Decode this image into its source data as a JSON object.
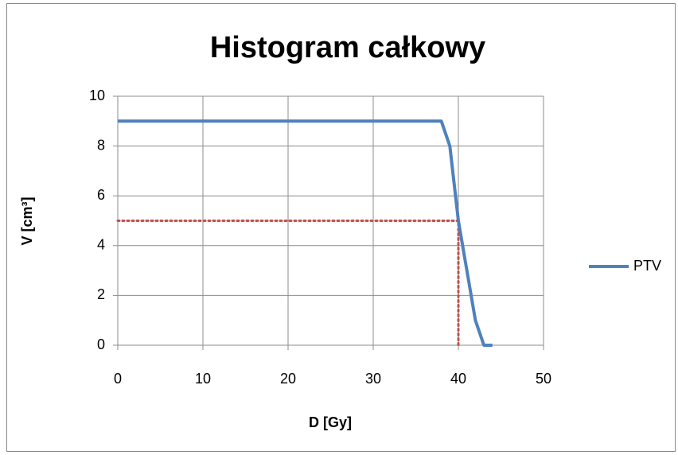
{
  "chart_data": {
    "type": "line",
    "title": "Histogram całkowy",
    "xlabel": "D [Gy]",
    "ylabel": "V [cm³]",
    "xlim": [
      0,
      50
    ],
    "xticks": [
      0,
      10,
      20,
      30,
      40,
      50
    ],
    "ylim": [
      0,
      10
    ],
    "yticks": [
      0,
      2,
      4,
      6,
      8,
      10
    ],
    "grid": true,
    "legend": "right",
    "series": [
      {
        "name": "PTV",
        "color": "#4f81bd",
        "x": [
          0,
          38,
          39,
          40,
          41,
          42,
          43,
          44
        ],
        "values": [
          9,
          9,
          8,
          5,
          3,
          1,
          0,
          0
        ]
      }
    ],
    "reference_lines": [
      {
        "color": "#c0504d",
        "style": "dotted",
        "x": [
          0,
          40,
          40
        ],
        "values": [
          5,
          5,
          0
        ]
      }
    ]
  }
}
